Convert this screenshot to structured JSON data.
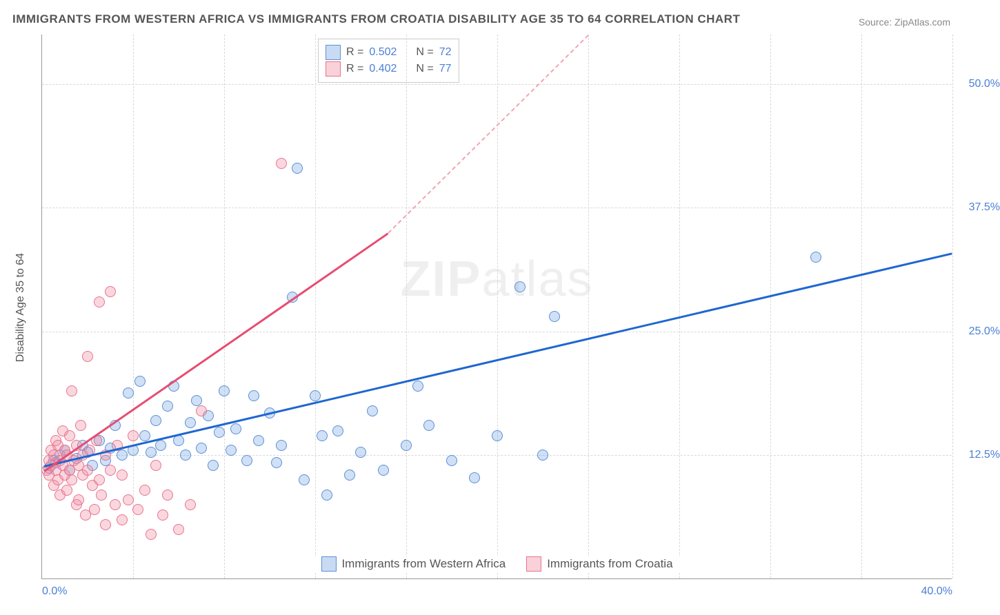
{
  "title": "IMMIGRANTS FROM WESTERN AFRICA VS IMMIGRANTS FROM CROATIA DISABILITY AGE 35 TO 64 CORRELATION CHART",
  "source": "Source: ZipAtlas.com",
  "watermark_bold": "ZIP",
  "watermark_rest": "atlas",
  "chart": {
    "type": "scatter-with-trendlines",
    "yaxis_label": "Disability Age 35 to 64",
    "xlim": [
      0,
      40
    ],
    "ylim": [
      0,
      55
    ],
    "xtick_labels": [
      {
        "pos": 0,
        "label": "0.0%"
      },
      {
        "pos": 40,
        "label": "40.0%"
      }
    ],
    "ytick_labels": [
      {
        "pos": 12.5,
        "label": "12.5%"
      },
      {
        "pos": 25.0,
        "label": "25.0%"
      },
      {
        "pos": 37.5,
        "label": "37.5%"
      },
      {
        "pos": 50.0,
        "label": "50.0%"
      }
    ],
    "xtick_positions": [
      0,
      4,
      8,
      12,
      16,
      20,
      24,
      28,
      32,
      36,
      40
    ],
    "grid_color": "#d8d8d8",
    "background_color": "#ffffff",
    "series": [
      {
        "name": "Immigrants from Western Africa",
        "color_fill": "rgba(120,165,225,0.35)",
        "color_stroke": "#5c8fd6",
        "trend_color": "#1f66d0",
        "marker_size": 16,
        "R": "0.502",
        "N": "72",
        "trend": {
          "x1": 0.1,
          "y1": 11.5,
          "x2": 40,
          "y2": 33.0
        },
        "points": [
          [
            0.3,
            11.2
          ],
          [
            0.5,
            12.0
          ],
          [
            0.6,
            11.8
          ],
          [
            0.8,
            12.5
          ],
          [
            1.0,
            13.0
          ],
          [
            1.2,
            11.0
          ],
          [
            1.5,
            12.2
          ],
          [
            1.8,
            13.5
          ],
          [
            2.0,
            12.8
          ],
          [
            2.2,
            11.5
          ],
          [
            2.5,
            14.0
          ],
          [
            2.8,
            12.0
          ],
          [
            3.0,
            13.2
          ],
          [
            3.2,
            15.5
          ],
          [
            3.5,
            12.5
          ],
          [
            3.8,
            18.8
          ],
          [
            4.0,
            13.0
          ],
          [
            4.3,
            20.0
          ],
          [
            4.5,
            14.5
          ],
          [
            4.8,
            12.8
          ],
          [
            5.0,
            16.0
          ],
          [
            5.2,
            13.5
          ],
          [
            5.5,
            17.5
          ],
          [
            5.8,
            19.5
          ],
          [
            6.0,
            14.0
          ],
          [
            6.3,
            12.5
          ],
          [
            6.5,
            15.8
          ],
          [
            6.8,
            18.0
          ],
          [
            7.0,
            13.2
          ],
          [
            7.3,
            16.5
          ],
          [
            7.5,
            11.5
          ],
          [
            7.8,
            14.8
          ],
          [
            8.0,
            19.0
          ],
          [
            8.3,
            13.0
          ],
          [
            8.5,
            15.2
          ],
          [
            9.0,
            12.0
          ],
          [
            9.3,
            18.5
          ],
          [
            9.5,
            14.0
          ],
          [
            10.0,
            16.8
          ],
          [
            10.3,
            11.8
          ],
          [
            10.5,
            13.5
          ],
          [
            11.0,
            28.5
          ],
          [
            11.2,
            41.5
          ],
          [
            11.5,
            10.0
          ],
          [
            12.0,
            18.5
          ],
          [
            12.3,
            14.5
          ],
          [
            12.5,
            8.5
          ],
          [
            13.0,
            15.0
          ],
          [
            13.5,
            10.5
          ],
          [
            14.0,
            12.8
          ],
          [
            14.5,
            17.0
          ],
          [
            15.0,
            11.0
          ],
          [
            16.0,
            13.5
          ],
          [
            16.5,
            19.5
          ],
          [
            17.0,
            15.5
          ],
          [
            18.0,
            12.0
          ],
          [
            19.0,
            10.2
          ],
          [
            20.0,
            14.5
          ],
          [
            21.0,
            29.5
          ],
          [
            22.0,
            12.5
          ],
          [
            22.5,
            26.5
          ],
          [
            34.0,
            32.5
          ]
        ]
      },
      {
        "name": "Immigrants from Croatia",
        "color_fill": "rgba(240,140,160,0.35)",
        "color_stroke": "#e8738f",
        "trend_color": "#e84c72",
        "trend_dash_color": "#f0a5b5",
        "marker_size": 16,
        "R": "0.402",
        "N": "77",
        "trend_solid": {
          "x1": 0.1,
          "y1": 11.0,
          "x2": 15.2,
          "y2": 35.0
        },
        "trend_dashed": {
          "x1": 15.2,
          "y1": 35.0,
          "x2": 24.0,
          "y2": 55.0
        },
        "points": [
          [
            0.2,
            11.0
          ],
          [
            0.3,
            12.0
          ],
          [
            0.3,
            10.5
          ],
          [
            0.4,
            13.0
          ],
          [
            0.4,
            11.5
          ],
          [
            0.5,
            9.5
          ],
          [
            0.5,
            12.5
          ],
          [
            0.6,
            14.0
          ],
          [
            0.6,
            11.0
          ],
          [
            0.7,
            10.0
          ],
          [
            0.7,
            13.5
          ],
          [
            0.8,
            12.0
          ],
          [
            0.8,
            8.5
          ],
          [
            0.9,
            15.0
          ],
          [
            0.9,
            11.5
          ],
          [
            1.0,
            10.5
          ],
          [
            1.0,
            13.0
          ],
          [
            1.1,
            12.5
          ],
          [
            1.1,
            9.0
          ],
          [
            1.2,
            14.5
          ],
          [
            1.2,
            11.0
          ],
          [
            1.3,
            19.0
          ],
          [
            1.3,
            10.0
          ],
          [
            1.4,
            12.0
          ],
          [
            1.5,
            7.5
          ],
          [
            1.5,
            13.5
          ],
          [
            1.6,
            11.5
          ],
          [
            1.6,
            8.0
          ],
          [
            1.7,
            15.5
          ],
          [
            1.8,
            10.5
          ],
          [
            1.8,
            12.5
          ],
          [
            1.9,
            6.5
          ],
          [
            2.0,
            22.5
          ],
          [
            2.0,
            11.0
          ],
          [
            2.1,
            13.0
          ],
          [
            2.2,
            9.5
          ],
          [
            2.3,
            7.0
          ],
          [
            2.4,
            14.0
          ],
          [
            2.5,
            28.0
          ],
          [
            2.5,
            10.0
          ],
          [
            2.6,
            8.5
          ],
          [
            2.8,
            12.5
          ],
          [
            2.8,
            5.5
          ],
          [
            3.0,
            29.0
          ],
          [
            3.0,
            11.0
          ],
          [
            3.2,
            7.5
          ],
          [
            3.3,
            13.5
          ],
          [
            3.5,
            6.0
          ],
          [
            3.5,
            10.5
          ],
          [
            3.8,
            8.0
          ],
          [
            4.0,
            14.5
          ],
          [
            4.2,
            7.0
          ],
          [
            4.5,
            9.0
          ],
          [
            4.8,
            4.5
          ],
          [
            5.0,
            11.5
          ],
          [
            5.3,
            6.5
          ],
          [
            5.5,
            8.5
          ],
          [
            6.0,
            5.0
          ],
          [
            6.5,
            7.5
          ],
          [
            7.0,
            17.0
          ],
          [
            10.5,
            42.0
          ]
        ]
      }
    ],
    "legend_top": {
      "R_prefix": "R = ",
      "N_prefix": "N = "
    },
    "legend_bottom": [
      {
        "label": "Immigrants from Western Africa",
        "class": "blue"
      },
      {
        "label": "Immigrants from Croatia",
        "class": "pink"
      }
    ]
  }
}
